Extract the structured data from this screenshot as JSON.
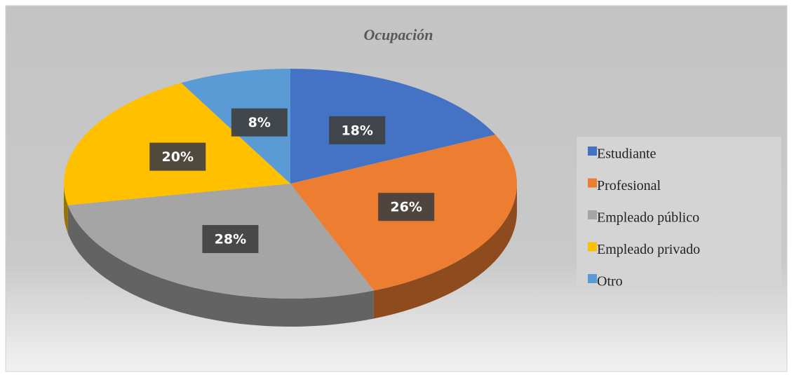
{
  "chart_data": {
    "type": "pie",
    "title": "Ocupación",
    "categories": [
      "Estudiante",
      "Profesional",
      "Empleado público",
      "Empleado privado",
      "Otro"
    ],
    "values": [
      18,
      26,
      28,
      20,
      8
    ],
    "value_labels": [
      "18%",
      "26%",
      "28%",
      "20%",
      "8%"
    ],
    "colors": [
      "#4472c4",
      "#ed7d31",
      "#a5a5a5",
      "#ffc000",
      "#5b9bd5"
    ],
    "legend": "right"
  }
}
